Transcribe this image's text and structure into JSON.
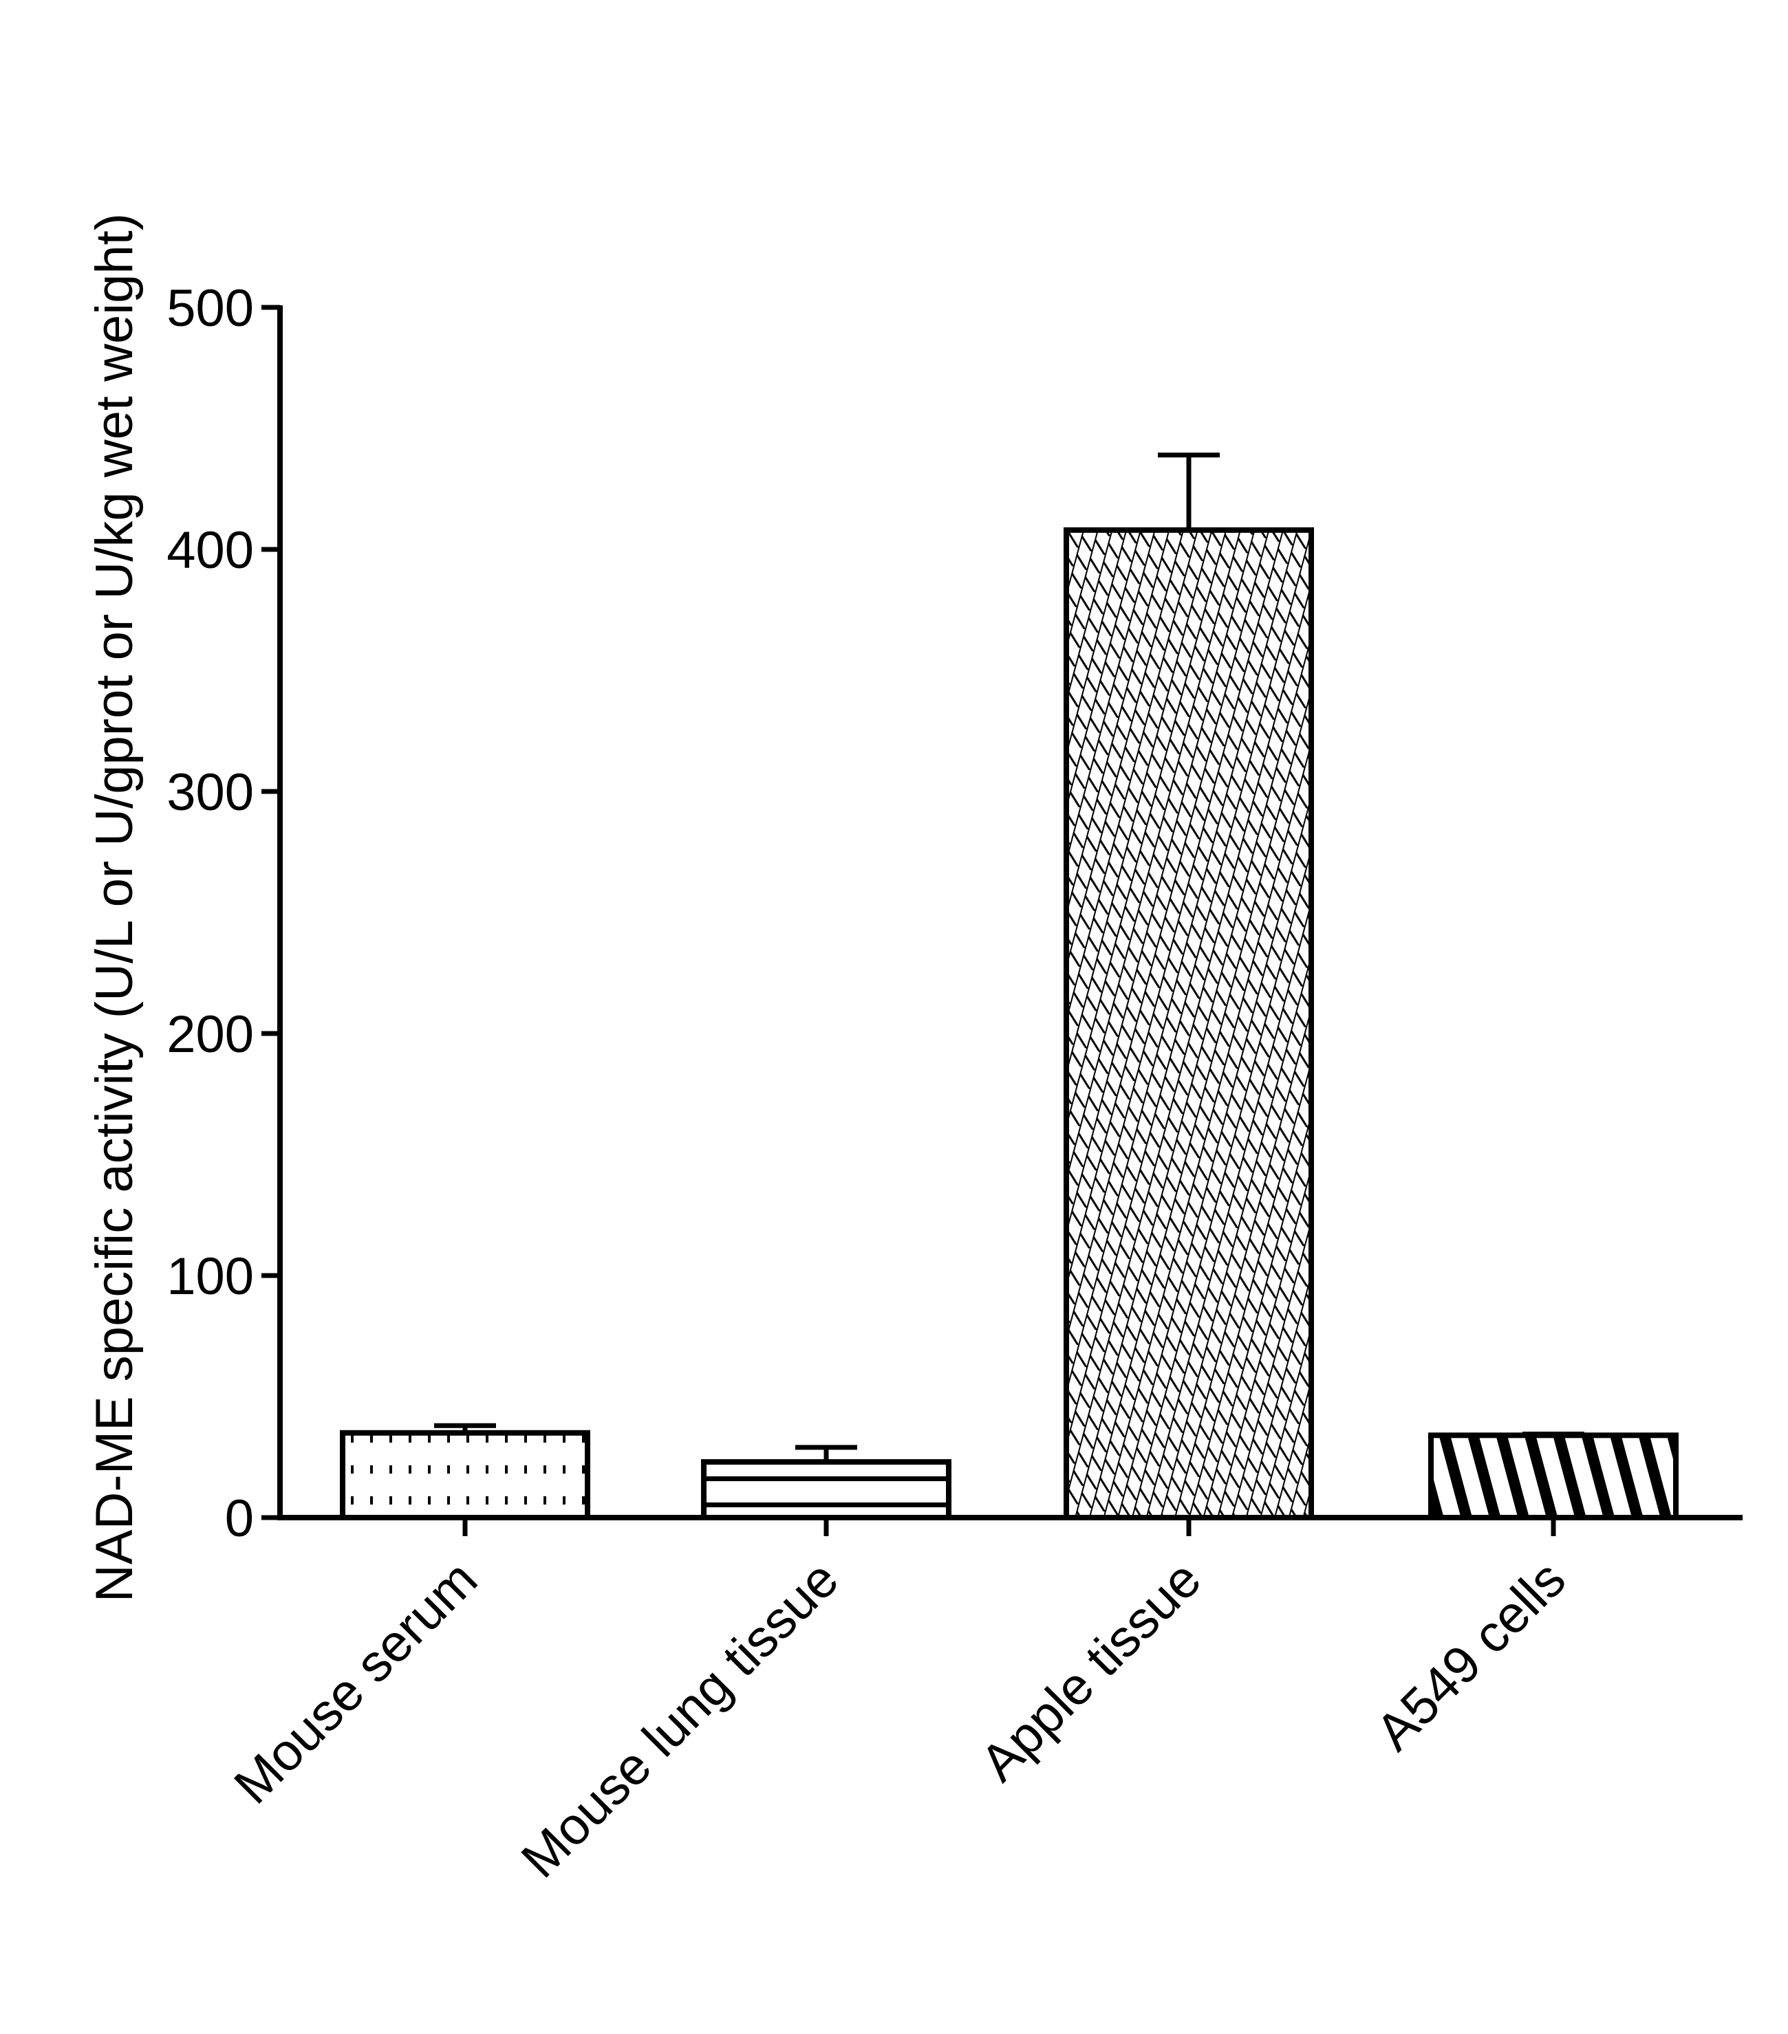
{
  "chart_data": {
    "type": "bar",
    "title": "",
    "xlabel": "",
    "ylabel": "NAD-ME specific activity (U/L or U/gprot or U/kg wet weight)",
    "ylim": [
      0,
      500
    ],
    "yticks": [
      0,
      100,
      200,
      300,
      400,
      500
    ],
    "grid": false,
    "legend": "none",
    "categories": [
      "Mouse serum",
      "Mouse lung tissue",
      "Apple tissue",
      "A549 cells"
    ],
    "values": [
      35,
      23,
      408,
      34
    ],
    "error_upper": [
      3,
      6,
      31,
      0.5
    ],
    "fill_patterns": [
      "dots",
      "horizontal-lines",
      "crosshatch",
      "diagonal-stripes"
    ],
    "colors": {
      "stroke": "#000000",
      "fill": "#ffffff"
    }
  }
}
